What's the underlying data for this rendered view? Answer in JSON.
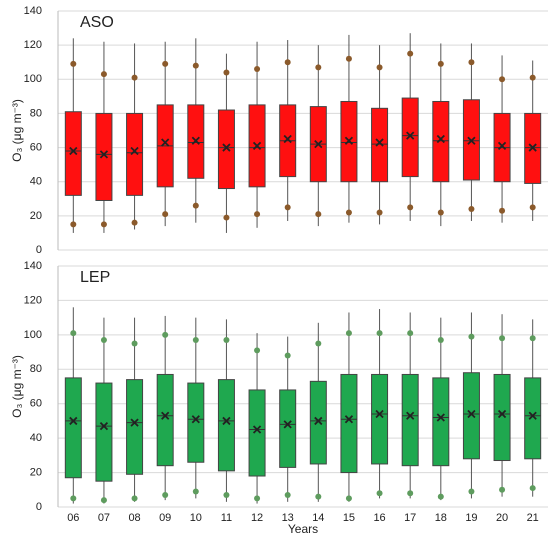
{
  "chart_data": [
    {
      "type": "box",
      "title": "ASO",
      "ylabel": "O₃ (μg m⁻³)",
      "ylim": [
        0,
        140
      ],
      "yticks": [
        0,
        20,
        40,
        60,
        80,
        100,
        120,
        140
      ],
      "grid": true,
      "color": "#ff1010",
      "dot_color": "#8b5a2b",
      "boxes": {
        "max": [
          124,
          122,
          121,
          122,
          124,
          115,
          122,
          123,
          120,
          126,
          120,
          127,
          121,
          121,
          114,
          111
        ],
        "p95": [
          109,
          103,
          101,
          109,
          108,
          104,
          106,
          110,
          107,
          112,
          107,
          115,
          109,
          110,
          100,
          101
        ],
        "q3": [
          81,
          80,
          80,
          85,
          85,
          82,
          85,
          85,
          84,
          87,
          83,
          89,
          87,
          88,
          80,
          80
        ],
        "median": [
          58,
          56,
          57,
          61,
          63,
          60,
          60,
          64,
          62,
          63,
          62,
          67,
          64,
          64,
          60,
          60
        ],
        "mean": [
          58,
          56,
          58,
          63,
          64,
          60,
          61,
          65,
          62,
          64,
          63,
          67,
          65,
          64,
          61,
          60
        ],
        "q1": [
          32,
          29,
          32,
          37,
          42,
          36,
          37,
          43,
          40,
          40,
          40,
          43,
          40,
          41,
          40,
          39
        ],
        "p5": [
          15,
          15,
          16,
          21,
          26,
          19,
          21,
          25,
          21,
          22,
          22,
          25,
          22,
          24,
          23,
          25
        ],
        "min": [
          10,
          10,
          12,
          14,
          16,
          10,
          13,
          17,
          14,
          16,
          15,
          17,
          14,
          17,
          16,
          17
        ]
      }
    },
    {
      "type": "box",
      "title": "LEP",
      "ylabel": "O₃ (μg m⁻³)",
      "xlabel": "Years",
      "ylim": [
        0,
        140
      ],
      "yticks": [
        0,
        20,
        40,
        60,
        80,
        100,
        120,
        140
      ],
      "grid": true,
      "color": "#1fa84f",
      "dot_color": "#5e9c5e",
      "categories": [
        "06",
        "07",
        "08",
        "09",
        "10",
        "11",
        "12",
        "13",
        "14",
        "15",
        "16",
        "17",
        "18",
        "19",
        "20",
        "21"
      ],
      "boxes": {
        "max": [
          116,
          110,
          110,
          111,
          110,
          109,
          101,
          99,
          107,
          113,
          115,
          113,
          110,
          113,
          112,
          109
        ],
        "p95": [
          101,
          97,
          95,
          100,
          97,
          97,
          91,
          88,
          95,
          101,
          101,
          101,
          97,
          99,
          98,
          98
        ],
        "q3": [
          75,
          72,
          74,
          77,
          72,
          74,
          68,
          68,
          73,
          77,
          77,
          77,
          75,
          78,
          77,
          75
        ],
        "median": [
          50,
          47,
          49,
          53,
          51,
          50,
          45,
          48,
          50,
          51,
          54,
          53,
          52,
          54,
          54,
          53
        ],
        "mean": [
          50,
          47,
          49,
          53,
          51,
          50,
          45,
          48,
          50,
          51,
          54,
          53,
          52,
          54,
          54,
          53
        ],
        "q1": [
          17,
          15,
          19,
          24,
          26,
          21,
          18,
          23,
          25,
          20,
          25,
          24,
          24,
          28,
          27,
          28
        ],
        "p5": [
          5,
          4,
          5,
          7,
          9,
          7,
          5,
          7,
          6,
          5,
          8,
          8,
          6,
          9,
          10,
          11
        ],
        "min": [
          2,
          2,
          3,
          4,
          5,
          3,
          2,
          3,
          3,
          3,
          5,
          5,
          4,
          5,
          6,
          6
        ]
      }
    }
  ]
}
